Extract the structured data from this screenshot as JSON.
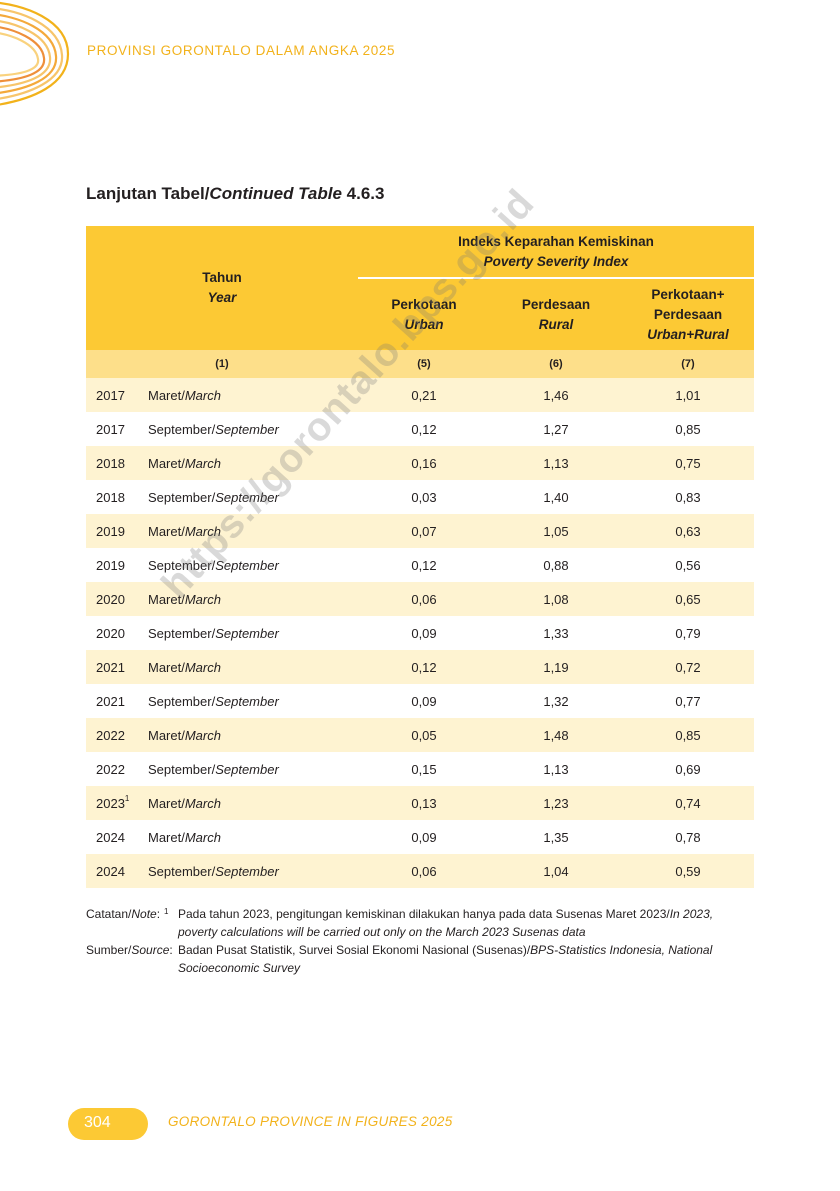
{
  "header": {
    "title": "PROVINSI GORONTALO DALAM ANGKA 2025"
  },
  "table_title": {
    "prefix": "Lanjutan Tabel/",
    "italic": "Continued Table",
    "number": " 4.6.3"
  },
  "table": {
    "year_header": "Tahun",
    "year_header_en": "Year",
    "group_header": "Indeks Keparahan Kemiskinan",
    "group_header_en": "Poverty Severity Index",
    "columns": [
      {
        "label": "Perkotaan",
        "label_en": "Urban"
      },
      {
        "label": "Perdesaan",
        "label_en": "Rural"
      },
      {
        "label": "Perkotaan+",
        "label2": "Perdesaan",
        "label_en": "Urban+Rural"
      }
    ],
    "column_numbers": [
      "(1)",
      "(5)",
      "(6)",
      "(7)"
    ],
    "rows": [
      {
        "year": "2017",
        "sup": "",
        "period": "Maret/",
        "period_en": "March",
        "urban": "0,21",
        "rural": "1,46",
        "total": "1,01"
      },
      {
        "year": "2017",
        "sup": "",
        "period": "September/",
        "period_en": "September",
        "urban": "0,12",
        "rural": "1,27",
        "total": "0,85"
      },
      {
        "year": "2018",
        "sup": "",
        "period": "Maret/",
        "period_en": "March",
        "urban": "0,16",
        "rural": "1,13",
        "total": "0,75"
      },
      {
        "year": "2018",
        "sup": "",
        "period": "September/",
        "period_en": "September",
        "urban": "0,03",
        "rural": "1,40",
        "total": "0,83"
      },
      {
        "year": "2019",
        "sup": "",
        "period": "Maret/",
        "period_en": "March",
        "urban": "0,07",
        "rural": "1,05",
        "total": "0,63"
      },
      {
        "year": "2019",
        "sup": "",
        "period": "September/",
        "period_en": "September",
        "urban": "0,12",
        "rural": "0,88",
        "total": "0,56"
      },
      {
        "year": "2020",
        "sup": "",
        "period": "Maret/",
        "period_en": "March",
        "urban": "0,06",
        "rural": "1,08",
        "total": "0,65"
      },
      {
        "year": "2020",
        "sup": "",
        "period": "September/",
        "period_en": "September",
        "urban": "0,09",
        "rural": "1,33",
        "total": "0,79"
      },
      {
        "year": "2021",
        "sup": "",
        "period": "Maret/",
        "period_en": "March",
        "urban": "0,12",
        "rural": "1,19",
        "total": "0,72"
      },
      {
        "year": "2021",
        "sup": "",
        "period": "September/",
        "period_en": "September",
        "urban": "0,09",
        "rural": "1,32",
        "total": "0,77"
      },
      {
        "year": "2022",
        "sup": "",
        "period": "Maret/",
        "period_en": "March",
        "urban": "0,05",
        "rural": "1,48",
        "total": "0,85"
      },
      {
        "year": "2022",
        "sup": "",
        "period": "September/",
        "period_en": "September",
        "urban": "0,15",
        "rural": "1,13",
        "total": "0,69"
      },
      {
        "year": "2023",
        "sup": "1",
        "period": "Maret/",
        "period_en": "March",
        "urban": "0,13",
        "rural": "1,23",
        "total": "0,74"
      },
      {
        "year": "2024",
        "sup": "",
        "period": "Maret/",
        "period_en": "March",
        "urban": "0,09",
        "rural": "1,35",
        "total": "0,78"
      },
      {
        "year": "2024",
        "sup": "",
        "period": "September/",
        "period_en": "September",
        "urban": "0,06",
        "rural": "1,04",
        "total": "0,59"
      }
    ]
  },
  "watermark": "https://gorontalo.bps.go.id",
  "notes": {
    "note_label": "Catatan/",
    "note_label_en": "Note",
    "note_colon": ":",
    "note_mark": "1",
    "note_text": "Pada tahun 2023, pengitungan kemiskinan dilakukan hanya pada data Susenas Maret 2023/",
    "note_text_en": "In 2023, poverty calculations will be carried out only on the March 2023 Susenas data",
    "source_label": "Sumber/",
    "source_label_en": "Source",
    "source_colon": ":",
    "source_text": "Badan Pusat Statistik, Survei Sosial Ekonomi Nasional (Susenas)/",
    "source_text_en": "BPS-Statistics Indonesia, National Socioeconomic Survey"
  },
  "footer": {
    "page_number": "304",
    "title": "GORONTALO PROVINCE IN FIGURES 2025"
  },
  "colors": {
    "accent": "#fcc934",
    "accent_text": "#f2b21b",
    "row_stripe": "#fef3d1",
    "column_number_row": "#fddf8a"
  }
}
